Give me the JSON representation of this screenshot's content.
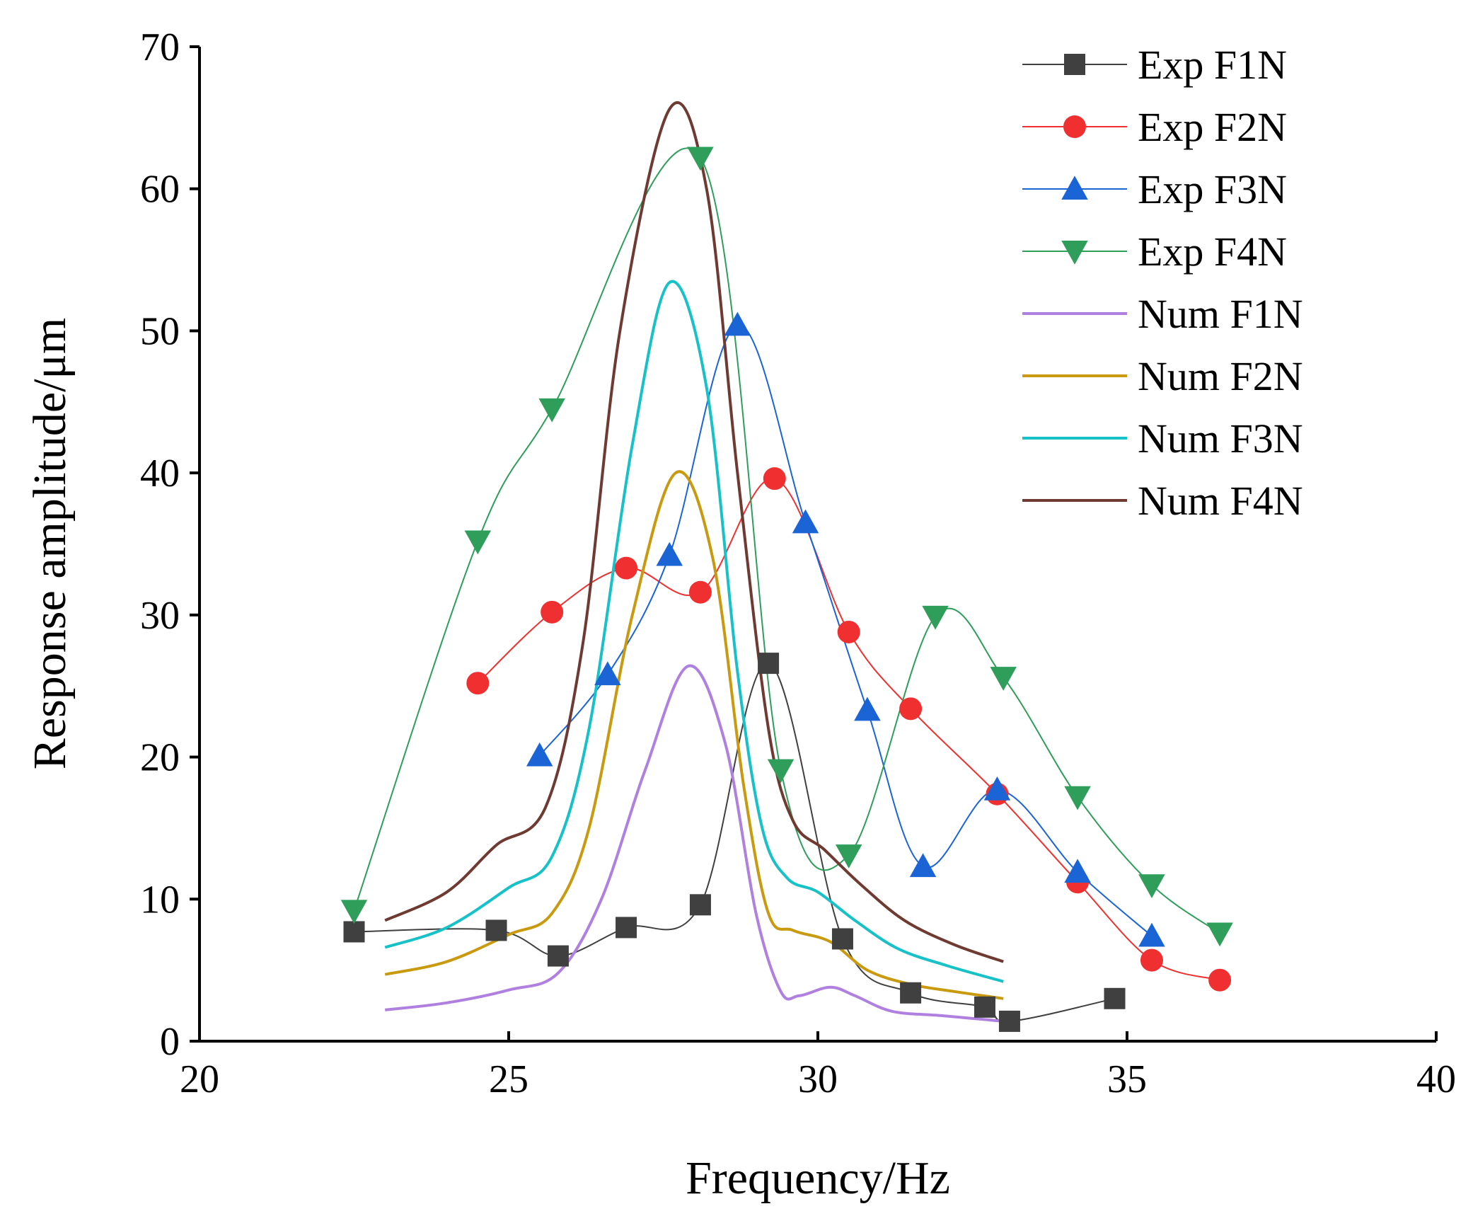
{
  "chart_data": {
    "type": "line",
    "title": "",
    "xlabel": "Frequency/Hz",
    "ylabel": "Response amplitude/μm",
    "xlim": [
      20,
      40
    ],
    "ylim": [
      0,
      70
    ],
    "xticks": [
      20,
      25,
      30,
      35,
      40
    ],
    "yticks": [
      0,
      10,
      20,
      30,
      40,
      50,
      60,
      70
    ],
    "grid": false,
    "legend_position": "top-right",
    "series": [
      {
        "name": "Exp F1N",
        "color": "#404040",
        "marker": "square",
        "line_width": 2,
        "x": [
          22.5,
          24.8,
          25.8,
          26.9,
          28.1,
          29.2,
          30.4,
          31.5,
          32.7,
          33.1,
          34.8
        ],
        "y": [
          7.7,
          7.8,
          6.0,
          8.0,
          9.6,
          26.6,
          7.2,
          3.4,
          2.4,
          1.4,
          3.0
        ]
      },
      {
        "name": "Exp F2N",
        "color": "#f03030",
        "marker": "circle",
        "line_width": 2,
        "x": [
          24.5,
          25.7,
          26.9,
          28.1,
          29.3,
          30.5,
          31.5,
          32.9,
          34.2,
          35.4,
          36.5
        ],
        "y": [
          25.2,
          30.2,
          33.3,
          31.6,
          39.6,
          28.8,
          23.4,
          17.4,
          11.2,
          5.7,
          4.3
        ]
      },
      {
        "name": "Exp F3N",
        "color": "#1b64d6",
        "marker": "triangle-up",
        "line_width": 2,
        "x": [
          25.5,
          26.6,
          27.6,
          28.7,
          29.8,
          30.8,
          31.7,
          32.9,
          34.2,
          35.4
        ],
        "y": [
          20.1,
          25.8,
          34.2,
          50.4,
          36.5,
          23.3,
          12.3,
          17.7,
          11.9,
          7.4
        ]
      },
      {
        "name": "Exp F4N",
        "color": "#2e9e5a",
        "marker": "triangle-down",
        "line_width": 2,
        "x": [
          22.5,
          24.5,
          25.7,
          28.1,
          29.4,
          30.5,
          31.9,
          33.0,
          34.2,
          35.4,
          36.5
        ],
        "y": [
          9.2,
          35.2,
          44.5,
          62.2,
          19.1,
          13.1,
          29.9,
          25.6,
          17.2,
          11.0,
          7.6
        ]
      },
      {
        "name": "Num F1N",
        "color": "#b080e0",
        "marker": "none",
        "line_width": 4,
        "x": [
          23.0,
          24.0,
          25.0,
          25.8,
          26.5,
          27.2,
          27.9,
          28.5,
          29.0,
          29.4,
          29.7,
          30.2,
          30.6,
          31.2,
          32.0,
          33.0
        ],
        "y": [
          2.2,
          2.7,
          3.6,
          4.8,
          10.0,
          19.0,
          26.4,
          21.0,
          9.0,
          3.5,
          3.2,
          3.8,
          3.2,
          2.1,
          1.8,
          1.4
        ]
      },
      {
        "name": "Num F2N",
        "color": "#c99a10",
        "marker": "none",
        "line_width": 4,
        "x": [
          23.0,
          24.0,
          25.0,
          25.7,
          26.3,
          27.0,
          27.7,
          28.3,
          28.8,
          29.2,
          29.6,
          30.2,
          30.8,
          31.5,
          32.2,
          33.0
        ],
        "y": [
          4.7,
          5.6,
          7.5,
          9.0,
          15.0,
          30.0,
          40.0,
          34.0,
          18.0,
          9.0,
          7.8,
          7.0,
          5.0,
          4.0,
          3.5,
          3.0
        ]
      },
      {
        "name": "Num F3N",
        "color": "#17c1c8",
        "marker": "none",
        "line_width": 4,
        "x": [
          23.0,
          24.0,
          25.0,
          25.7,
          26.3,
          27.0,
          27.6,
          28.2,
          28.7,
          29.1,
          29.5,
          30.0,
          30.6,
          31.3,
          32.1,
          33.0
        ],
        "y": [
          6.6,
          8.0,
          10.8,
          13.0,
          22.0,
          42.0,
          53.4,
          46.0,
          26.0,
          15.0,
          11.5,
          10.5,
          8.5,
          6.5,
          5.3,
          4.2
        ]
      },
      {
        "name": "Num F4N",
        "color": "#6e3a32",
        "marker": "none",
        "line_width": 4,
        "x": [
          23.0,
          24.0,
          24.8,
          25.6,
          26.2,
          26.8,
          27.6,
          28.2,
          28.7,
          29.2,
          29.6,
          30.1,
          30.7,
          31.4,
          32.2,
          33.0
        ],
        "y": [
          8.5,
          10.5,
          13.8,
          16.5,
          28.0,
          50.0,
          65.6,
          60.0,
          40.0,
          22.0,
          15.5,
          13.5,
          11.0,
          8.5,
          6.8,
          5.6
        ]
      }
    ]
  }
}
